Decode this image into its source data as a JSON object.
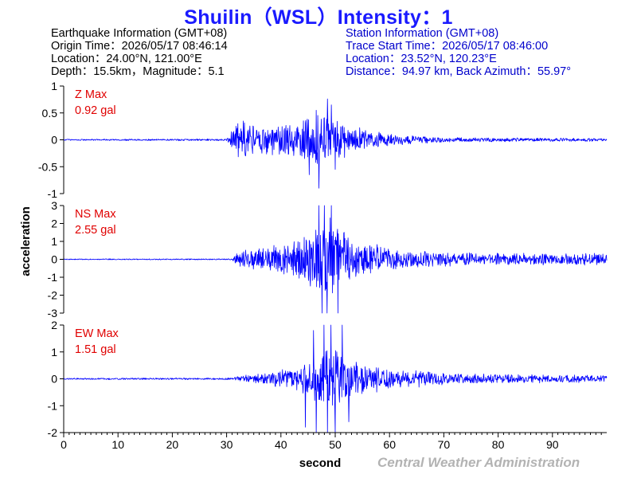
{
  "title": "Shuilin（WSL）Intensity：1",
  "earthquake": {
    "heading": "Earthquake Information  (GMT+08)",
    "origin_time": "Origin Time：2026/05/17 08:46:14",
    "location": "Location：24.00°N, 121.00°E",
    "depth_magnitude": "Depth：15.5km，Magnitude：5.1"
  },
  "station": {
    "heading": "Station Information  (GMT+08)",
    "trace_start": "Trace Start Time：2026/05/17 08:46:00",
    "location": "Location：23.52°N, 120.23°E",
    "distance": "Distance：94.97 km, Back Azimuth：55.97°"
  },
  "footer": {
    "credit": "Central Weather Administration"
  },
  "chart_data": {
    "type": "line",
    "xlabel": "second",
    "ylabel": "acceleration",
    "xlim": [
      0,
      100
    ],
    "x_ticks": [
      0,
      10,
      20,
      30,
      40,
      50,
      60,
      70,
      80,
      90
    ],
    "colors": {
      "trace": "#0000ff",
      "max_label": "#e00000",
      "axis": "#000000"
    },
    "panels": [
      {
        "component": "Z",
        "max_label": "Z Max",
        "max_value": "0.92 gal",
        "ylim": [
          -1,
          1
        ],
        "y_ticks": [
          1,
          0.5,
          0,
          -0.5,
          -1
        ],
        "envelope": [
          [
            0,
            0.015
          ],
          [
            30,
            0.02
          ],
          [
            31.5,
            0.3
          ],
          [
            33,
            0.4
          ],
          [
            36,
            0.28
          ],
          [
            38,
            0.3
          ],
          [
            42,
            0.35
          ],
          [
            45,
            0.45
          ],
          [
            47,
            0.55
          ],
          [
            48.5,
            0.6
          ],
          [
            50,
            0.45
          ],
          [
            53,
            0.3
          ],
          [
            56,
            0.2
          ],
          [
            60,
            0.12
          ],
          [
            65,
            0.08
          ],
          [
            70,
            0.05
          ],
          [
            80,
            0.04
          ],
          [
            90,
            0.035
          ],
          [
            100,
            0.03
          ]
        ],
        "peaks": [
          [
            33.1,
            0.35
          ],
          [
            45.2,
            -0.65
          ],
          [
            46.5,
            0.55
          ],
          [
            47.0,
            -0.9
          ],
          [
            48.6,
            0.76
          ],
          [
            49.3,
            0.65
          ],
          [
            50.0,
            -0.55
          ]
        ]
      },
      {
        "component": "NS",
        "max_label": "NS Max",
        "max_value": "2.55 gal",
        "ylim": [
          -3,
          3
        ],
        "y_ticks": [
          3,
          2,
          1,
          0,
          -1,
          -2,
          -3
        ],
        "envelope": [
          [
            0,
            0.01
          ],
          [
            31,
            0.012
          ],
          [
            32,
            0.15
          ],
          [
            35,
            0.22
          ],
          [
            40,
            0.3
          ],
          [
            44,
            0.45
          ],
          [
            46,
            0.7
          ],
          [
            47.5,
            0.9
          ],
          [
            49,
            0.8
          ],
          [
            51,
            0.6
          ],
          [
            54,
            0.4
          ],
          [
            58,
            0.3
          ],
          [
            62,
            0.2
          ],
          [
            70,
            0.14
          ],
          [
            80,
            0.12
          ],
          [
            90,
            0.12
          ],
          [
            100,
            0.12
          ]
        ],
        "peaks": [
          [
            47.0,
            1.4
          ],
          [
            47.6,
            -1.6
          ],
          [
            48.0,
            2.0
          ],
          [
            48.5,
            -2.55
          ],
          [
            49.3,
            1.5
          ],
          [
            50.5,
            -1.1
          ]
        ]
      },
      {
        "component": "EW",
        "max_label": "EW Max",
        "max_value": "1.51 gal",
        "ylim": [
          -2,
          2
        ],
        "y_ticks": [
          2,
          1,
          0,
          -1,
          -2
        ],
        "envelope": [
          [
            0,
            0.015
          ],
          [
            31,
            0.02
          ],
          [
            33,
            0.08
          ],
          [
            37,
            0.12
          ],
          [
            40,
            0.18
          ],
          [
            44,
            0.3
          ],
          [
            46,
            0.5
          ],
          [
            48,
            0.7
          ],
          [
            50,
            0.65
          ],
          [
            52,
            0.45
          ],
          [
            56,
            0.3
          ],
          [
            60,
            0.22
          ],
          [
            65,
            0.16
          ],
          [
            70,
            0.12
          ],
          [
            80,
            0.09
          ],
          [
            90,
            0.08
          ],
          [
            100,
            0.07
          ]
        ],
        "peaks": [
          [
            44.5,
            -0.9
          ],
          [
            46.0,
            0.9
          ],
          [
            46.5,
            -1.3
          ],
          [
            47.9,
            1.45
          ],
          [
            48.6,
            -1.51
          ],
          [
            49.2,
            1.3
          ],
          [
            50.0,
            -1.2
          ],
          [
            51.3,
            1.15
          ],
          [
            52.5,
            -0.8
          ]
        ]
      }
    ]
  }
}
